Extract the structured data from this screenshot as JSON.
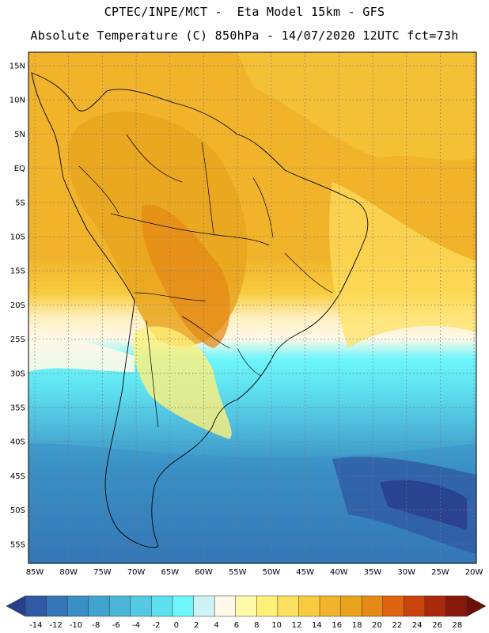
{
  "header": {
    "line1": "CPTEC/INPE/MCT -  Eta Model 15km - GFS",
    "line2": "Absolute Temperature (C) 850hPa - 14/07/2020 12UTC fct=73h"
  },
  "map": {
    "lat_labels": [
      "15N",
      "10N",
      "5N",
      "EQ",
      "5S",
      "10S",
      "15S",
      "20S",
      "25S",
      "30S",
      "35S",
      "40S",
      "45S",
      "50S",
      "55S"
    ],
    "lon_labels": [
      "85W",
      "80W",
      "75W",
      "70W",
      "65W",
      "60W",
      "55W",
      "50W",
      "45W",
      "40W",
      "35W",
      "30W",
      "25W",
      "20W"
    ]
  },
  "colorbar": {
    "labels": [
      "-14",
      "-12",
      "-10",
      "-8",
      "-6",
      "-4",
      "-2",
      "0",
      "2",
      "4",
      "6",
      "8",
      "10",
      "12",
      "14",
      "16",
      "18",
      "20",
      "22",
      "24",
      "26",
      "28"
    ],
    "colors": [
      "#2a3f8c",
      "#2f5aa3",
      "#3476b6",
      "#3a8fc4",
      "#43a3cf",
      "#4cb6d9",
      "#55c9e4",
      "#5ee0ef",
      "#6ef6fb",
      "#cdf3f7",
      "#fff8e8",
      "#fffaaa",
      "#fff07a",
      "#fde060",
      "#f8cb3e",
      "#f0b32a",
      "#e9a41e",
      "#e58a17",
      "#de6410",
      "#c9440d",
      "#a9290b",
      "#86180a",
      "#6b1208"
    ]
  }
}
